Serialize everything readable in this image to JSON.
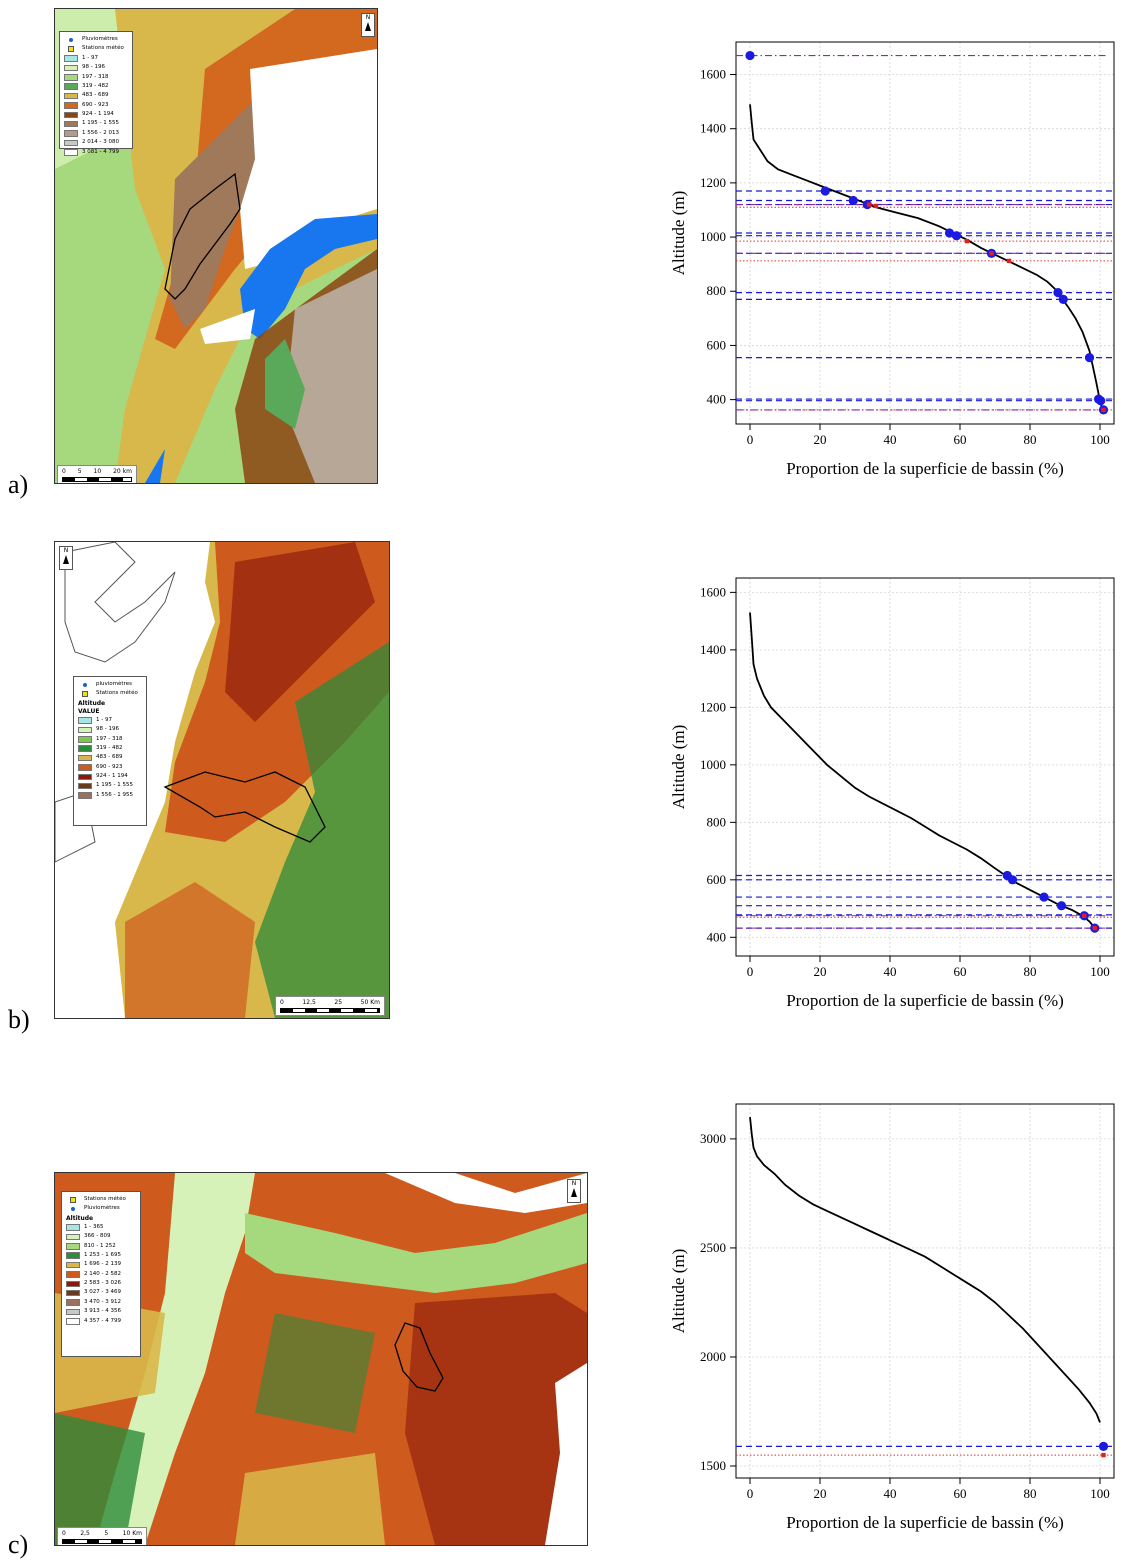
{
  "panels": [
    {
      "letter": "a)",
      "map": {
        "legend_items": [
          {
            "marker": "dot",
            "label": "Pluviomètres"
          },
          {
            "marker": "square",
            "label": "Stations météo"
          }
        ],
        "legend_title": "",
        "legend_subtitle": "",
        "classes": [
          {
            "label": "1 - 97",
            "color": "#a8e6e6"
          },
          {
            "label": "98 - 196",
            "color": "#d7f2b8"
          },
          {
            "label": "197 - 318",
            "color": "#a6d87e"
          },
          {
            "label": "319 - 482",
            "color": "#5aa85a"
          },
          {
            "label": "483 - 689",
            "color": "#d8b84a"
          },
          {
            "label": "690 - 923",
            "color": "#d2691e"
          },
          {
            "label": "924 - 1 194",
            "color": "#8b4513"
          },
          {
            "label": "1 195 - 1 555",
            "color": "#a0785a"
          },
          {
            "label": "1 556 - 2 013",
            "color": "#b89a8a"
          },
          {
            "label": "2 014 - 3 080",
            "color": "#c8c8c8"
          },
          {
            "label": "3 081 - 4 799",
            "color": "#ffffff"
          }
        ],
        "north": "N",
        "scale_labels": [
          "0",
          "5",
          "10",
          "20 km"
        ]
      }
    },
    {
      "letter": "b)",
      "map": {
        "legend_items": [
          {
            "marker": "dot",
            "label": "pluviomètres"
          },
          {
            "marker": "square",
            "label": "Stations météo"
          }
        ],
        "legend_title": "Altitude",
        "legend_subtitle": "VALUE",
        "classes": [
          {
            "label": "1 - 97",
            "color": "#a8e6e6"
          },
          {
            "label": "98 - 196",
            "color": "#d7f2b8"
          },
          {
            "label": "197 - 318",
            "color": "#7ec850"
          },
          {
            "label": "319 - 482",
            "color": "#2e8b3a"
          },
          {
            "label": "483 - 689",
            "color": "#d8b84a"
          },
          {
            "label": "690 - 923",
            "color": "#cf5a1e"
          },
          {
            "label": "924 - 1 194",
            "color": "#8b1a0a"
          },
          {
            "label": "1 195 - 1 555",
            "color": "#6b3a1a"
          },
          {
            "label": "1 556 - 1 955",
            "color": "#9a7060"
          }
        ],
        "north": "N",
        "scale_labels": [
          "0",
          "12,5",
          "25",
          "50 Km"
        ]
      }
    },
    {
      "letter": "c)",
      "map": {
        "legend_items": [
          {
            "marker": "square",
            "label": "Stations météo"
          },
          {
            "marker": "dot",
            "label": "Pluviomètres"
          }
        ],
        "legend_title": "Altitude",
        "legend_subtitle": "",
        "classes": [
          {
            "label": "1 - 365",
            "color": "#a8e6e6"
          },
          {
            "label": "366 - 809",
            "color": "#d7f2b8"
          },
          {
            "label": "810 - 1 252",
            "color": "#a6d87e"
          },
          {
            "label": "1 253 - 1 695",
            "color": "#2e8b3a"
          },
          {
            "label": "1 696 - 2 139",
            "color": "#d8b84a"
          },
          {
            "label": "2 140 - 2 582",
            "color": "#cf5a1e"
          },
          {
            "label": "2 583 - 3 026",
            "color": "#8b1a0a"
          },
          {
            "label": "3 027 - 3 469",
            "color": "#6b3a1a"
          },
          {
            "label": "3 470 - 3 912",
            "color": "#9a7060"
          },
          {
            "label": "3 913 - 4 356",
            "color": "#c8c8c8"
          },
          {
            "label": "4 357 - 4 799",
            "color": "#ffffff"
          }
        ],
        "north": "N",
        "scale_labels": [
          "0",
          "2,5",
          "5",
          "10 Km"
        ]
      }
    }
  ],
  "chart_data": [
    {
      "type": "line",
      "xlabel": "Proportion de la superficie de bassin (%)",
      "ylabel": "Altitude (m)",
      "xlim": [
        -4,
        104
      ],
      "ylim": [
        310,
        1720
      ],
      "xticks": [
        0,
        20,
        40,
        60,
        80,
        100
      ],
      "yticks": [
        400,
        600,
        800,
        1000,
        1200,
        1400,
        1600
      ],
      "grid": true,
      "curve": [
        [
          0,
          1490
        ],
        [
          0.5,
          1420
        ],
        [
          1,
          1360
        ],
        [
          3,
          1320
        ],
        [
          5,
          1280
        ],
        [
          8,
          1250
        ],
        [
          12,
          1230
        ],
        [
          16,
          1210
        ],
        [
          20,
          1190
        ],
        [
          24,
          1170
        ],
        [
          28,
          1150
        ],
        [
          32,
          1130
        ],
        [
          36,
          1110
        ],
        [
          42,
          1090
        ],
        [
          48,
          1070
        ],
        [
          54,
          1040
        ],
        [
          58,
          1015
        ],
        [
          62,
          990
        ],
        [
          66,
          960
        ],
        [
          70,
          935
        ],
        [
          74,
          910
        ],
        [
          78,
          885
        ],
        [
          82,
          860
        ],
        [
          85,
          835
        ],
        [
          87,
          810
        ],
        [
          89,
          775
        ],
        [
          91,
          740
        ],
        [
          93,
          700
        ],
        [
          95,
          650
        ],
        [
          97,
          580
        ],
        [
          98,
          520
        ],
        [
          99,
          460
        ],
        [
          99.6,
          420
        ],
        [
          100.5,
          370
        ]
      ],
      "blue_points": [
        [
          0,
          1670
        ],
        [
          21.5,
          1170
        ],
        [
          29.5,
          1135
        ],
        [
          33.5,
          1120
        ],
        [
          57,
          1015
        ],
        [
          59,
          1005
        ],
        [
          69,
          940
        ],
        [
          88,
          795
        ],
        [
          89.5,
          770
        ],
        [
          97,
          555
        ],
        [
          99.6,
          402
        ],
        [
          100.2,
          396
        ],
        [
          101,
          362
        ]
      ],
      "red_points": [
        [
          34,
          1120
        ],
        [
          36,
          1115
        ],
        [
          62,
          985
        ],
        [
          69,
          940
        ],
        [
          74,
          912
        ],
        [
          101,
          362
        ]
      ],
      "blue_dashed_levels": [
        1170,
        1135,
        1120,
        1015,
        1005,
        940,
        795,
        770,
        555,
        402,
        396
      ],
      "red_dotted_levels": [
        1110,
        985,
        912,
        362
      ],
      "purple_dashdot_levels": [
        1670,
        1120,
        940,
        362
      ]
    },
    {
      "type": "line",
      "xlabel": "Proportion de la superficie de bassin (%)",
      "ylabel": "Altitude (m)",
      "xlim": [
        -4,
        104
      ],
      "ylim": [
        335,
        1650
      ],
      "xticks": [
        0,
        20,
        40,
        60,
        80,
        100
      ],
      "yticks": [
        400,
        600,
        800,
        1000,
        1200,
        1400,
        1600
      ],
      "grid": true,
      "curve": [
        [
          0,
          1530
        ],
        [
          0.5,
          1440
        ],
        [
          1,
          1350
        ],
        [
          2,
          1300
        ],
        [
          4,
          1240
        ],
        [
          6,
          1200
        ],
        [
          10,
          1150
        ],
        [
          14,
          1100
        ],
        [
          18,
          1050
        ],
        [
          22,
          1000
        ],
        [
          26,
          960
        ],
        [
          30,
          920
        ],
        [
          34,
          890
        ],
        [
          38,
          865
        ],
        [
          42,
          840
        ],
        [
          46,
          815
        ],
        [
          50,
          785
        ],
        [
          54,
          755
        ],
        [
          58,
          730
        ],
        [
          62,
          705
        ],
        [
          66,
          675
        ],
        [
          70,
          640
        ],
        [
          73,
          615
        ],
        [
          76,
          590
        ],
        [
          80,
          565
        ],
        [
          84,
          540
        ],
        [
          88,
          515
        ],
        [
          92,
          495
        ],
        [
          95,
          475
        ],
        [
          97,
          455
        ],
        [
          98.5,
          432
        ]
      ],
      "blue_points": [
        [
          73.5,
          615
        ],
        [
          75,
          600
        ],
        [
          84,
          540
        ],
        [
          89,
          510
        ],
        [
          95.5,
          475
        ],
        [
          98.5,
          432
        ]
      ],
      "red_points": [
        [
          95.5,
          475
        ],
        [
          98.5,
          432
        ]
      ],
      "blue_dashed_levels": [
        615,
        600,
        540,
        510,
        478,
        432
      ],
      "red_dotted_levels": [
        470
      ],
      "purple_dashdot_levels": [
        475,
        432
      ]
    },
    {
      "type": "line",
      "xlabel": "Proportion de la superficie de bassin (%)",
      "ylabel": "Altitude (m)",
      "xlim": [
        -4,
        104
      ],
      "ylim": [
        1445,
        3160
      ],
      "xticks": [
        0,
        20,
        40,
        60,
        80,
        100
      ],
      "yticks": [
        1500,
        2000,
        2500,
        3000
      ],
      "grid": true,
      "curve": [
        [
          0,
          3100
        ],
        [
          0.5,
          3020
        ],
        [
          1,
          2960
        ],
        [
          2,
          2920
        ],
        [
          4,
          2880
        ],
        [
          7,
          2840
        ],
        [
          10,
          2790
        ],
        [
          14,
          2740
        ],
        [
          18,
          2700
        ],
        [
          22,
          2670
        ],
        [
          26,
          2640
        ],
        [
          30,
          2610
        ],
        [
          34,
          2580
        ],
        [
          38,
          2550
        ],
        [
          42,
          2520
        ],
        [
          46,
          2490
        ],
        [
          50,
          2460
        ],
        [
          54,
          2420
        ],
        [
          58,
          2380
        ],
        [
          62,
          2340
        ],
        [
          66,
          2300
        ],
        [
          70,
          2250
        ],
        [
          74,
          2190
        ],
        [
          78,
          2130
        ],
        [
          82,
          2060
        ],
        [
          86,
          1990
        ],
        [
          90,
          1920
        ],
        [
          94,
          1850
        ],
        [
          97,
          1790
        ],
        [
          99,
          1740
        ],
        [
          100,
          1700
        ]
      ],
      "blue_points": [
        [
          101,
          1590
        ]
      ],
      "red_points": [
        [
          101,
          1550
        ]
      ],
      "blue_dashed_levels": [
        1590
      ],
      "red_dotted_levels": [
        1550
      ],
      "purple_dashdot_levels": []
    }
  ]
}
